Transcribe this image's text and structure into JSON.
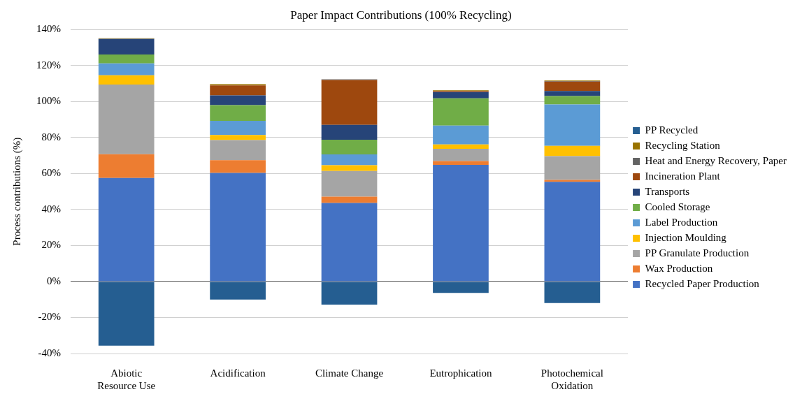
{
  "chart_data": {
    "type": "bar",
    "title": "Paper Impact Contributions (100% Recycling)",
    "ylabel": "Process contributions (%)",
    "categories": [
      "Abiotic Resource Use",
      "Acidification",
      "Climate Change",
      "Eutrophication",
      "Photochemical Oxidation"
    ],
    "stacked": true,
    "legend": "right",
    "grid": "y",
    "ylim": [
      -40,
      140
    ],
    "yticks": [
      {
        "value": -40,
        "label": "-40%"
      },
      {
        "value": -20,
        "label": "-20%"
      },
      {
        "value": 0,
        "label": "0%"
      },
      {
        "value": 20,
        "label": "20%"
      },
      {
        "value": 40,
        "label": "40%"
      },
      {
        "value": 60,
        "label": "60%"
      },
      {
        "value": 80,
        "label": "80%"
      },
      {
        "value": 100,
        "label": "100%"
      },
      {
        "value": 120,
        "label": "120%"
      },
      {
        "value": 140,
        "label": "140%"
      }
    ],
    "series": [
      {
        "name": "Recycled Paper Production",
        "color": "#4472c4",
        "values": [
          57.6,
          60.4,
          43.7,
          64.8,
          55.4
        ]
      },
      {
        "name": "Wax Production",
        "color": "#ed7d31",
        "values": [
          13.2,
          7.1,
          3.5,
          2.2,
          1.1
        ]
      },
      {
        "name": "PP Granulate Production",
        "color": "#a5a5a5",
        "values": [
          38.7,
          11.1,
          14.2,
          6.8,
          13.2
        ]
      },
      {
        "name": "Injection Moulding",
        "color": "#ffc000",
        "values": [
          5.1,
          2.8,
          3.2,
          2.4,
          5.7
        ]
      },
      {
        "name": "Label Production",
        "color": "#5b9bd5",
        "values": [
          6.6,
          7.9,
          6.1,
          10.5,
          23.0
        ]
      },
      {
        "name": "Cooled Storage",
        "color": "#70ad47",
        "values": [
          5.0,
          8.7,
          8.1,
          15.1,
          4.7
        ]
      },
      {
        "name": "Transports",
        "color": "#264478",
        "values": [
          8.6,
          5.5,
          8.3,
          3.5,
          2.8
        ]
      },
      {
        "name": "Incineration Plant",
        "color": "#9e480e",
        "values": [
          0,
          5.5,
          24.9,
          0.6,
          5.2
        ]
      },
      {
        "name": "Heat and Energy Recovery, Paper",
        "color": "#636363",
        "values": [
          0.1,
          0,
          0.4,
          0,
          0.3
        ]
      },
      {
        "name": "Recycling Station",
        "color": "#997300",
        "values": [
          0.3,
          0.7,
          null,
          0.4,
          0.3
        ]
      },
      {
        "name": "PP Recycled",
        "color": "#255e91",
        "values": [
          -35.6,
          -10.0,
          -12.8,
          -6.3,
          -11.9
        ]
      }
    ]
  }
}
